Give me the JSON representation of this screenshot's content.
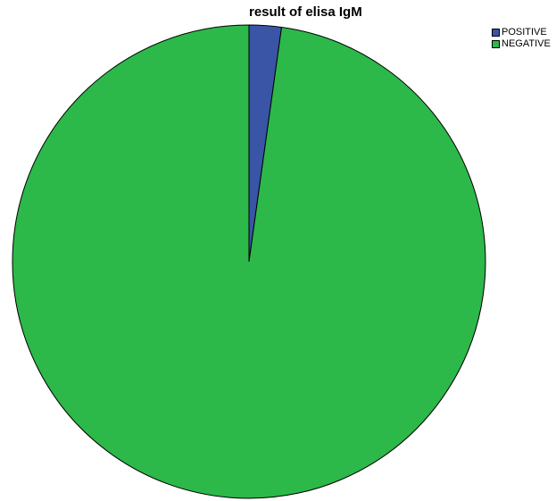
{
  "chart_data": {
    "type": "pie",
    "title": "result of elisa IgM",
    "categories": [
      "POSITIVE",
      "NEGATIVE"
    ],
    "values": [
      2.2,
      97.8
    ],
    "colors": [
      "#3a55a6",
      "#2db84a"
    ],
    "legend_position": "top-right",
    "start_angle": "12 o'clock",
    "direction": "clockwise",
    "slice_border_color": "#000000"
  }
}
